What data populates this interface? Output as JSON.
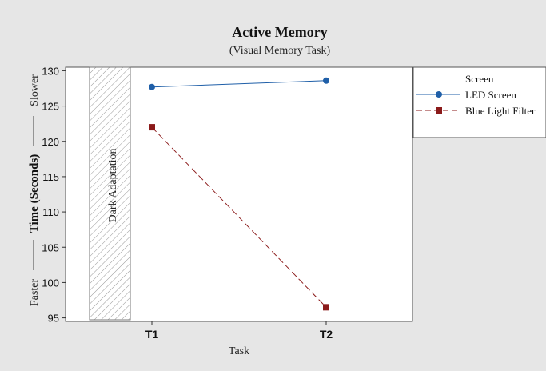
{
  "chart_data": {
    "type": "line",
    "title": "Active Memory",
    "subtitle": "(Visual Memory Task)",
    "xlabel": "Task",
    "ylabel": "Time (Seconds)",
    "ylabel_low": "Faster",
    "ylabel_high": "Slower",
    "categories": [
      "T1",
      "T2"
    ],
    "ylim": [
      94.5,
      130.5
    ],
    "yticks": [
      95,
      100,
      105,
      110,
      115,
      120,
      125,
      130
    ],
    "series": [
      {
        "name": "LED Screen",
        "values": [
          127.7,
          128.6
        ],
        "color": "#1f5fa8",
        "marker": "circle",
        "line": "solid"
      },
      {
        "name": "Blue Light Filter",
        "values": [
          122.0,
          96.5
        ],
        "color": "#8b1a1a",
        "marker": "square",
        "line": "dashed"
      }
    ],
    "legend": {
      "title": "Screen",
      "position": "right"
    },
    "annotation": "Dark Adaptation",
    "grid": false
  }
}
